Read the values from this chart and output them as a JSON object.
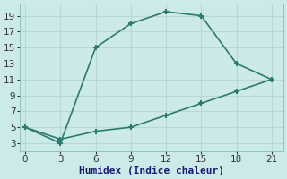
{
  "line1_x": [
    0,
    3,
    6,
    9,
    12,
    15,
    18,
    21
  ],
  "line1_y": [
    5,
    3,
    15,
    18,
    19.5,
    19,
    13,
    11
  ],
  "line2_x": [
    0,
    3,
    6,
    9,
    12,
    15,
    18,
    21
  ],
  "line2_y": [
    5,
    3.5,
    4.5,
    5,
    6.5,
    8,
    9.5,
    11
  ],
  "line_color": "#2d7a6e",
  "bg_color": "#cceae8",
  "grid_color": "#b8d8d5",
  "xlabel": "Humidex (Indice chaleur)",
  "xlim": [
    -0.5,
    22
  ],
  "ylim": [
    2,
    20.5
  ],
  "xticks": [
    0,
    3,
    6,
    9,
    12,
    15,
    18,
    21
  ],
  "yticks": [
    3,
    5,
    7,
    9,
    11,
    13,
    15,
    17,
    19
  ],
  "tick_fontsize": 7.5,
  "xlabel_fontsize": 8,
  "marker": "+",
  "marker_size": 5,
  "linewidth": 1.2
}
